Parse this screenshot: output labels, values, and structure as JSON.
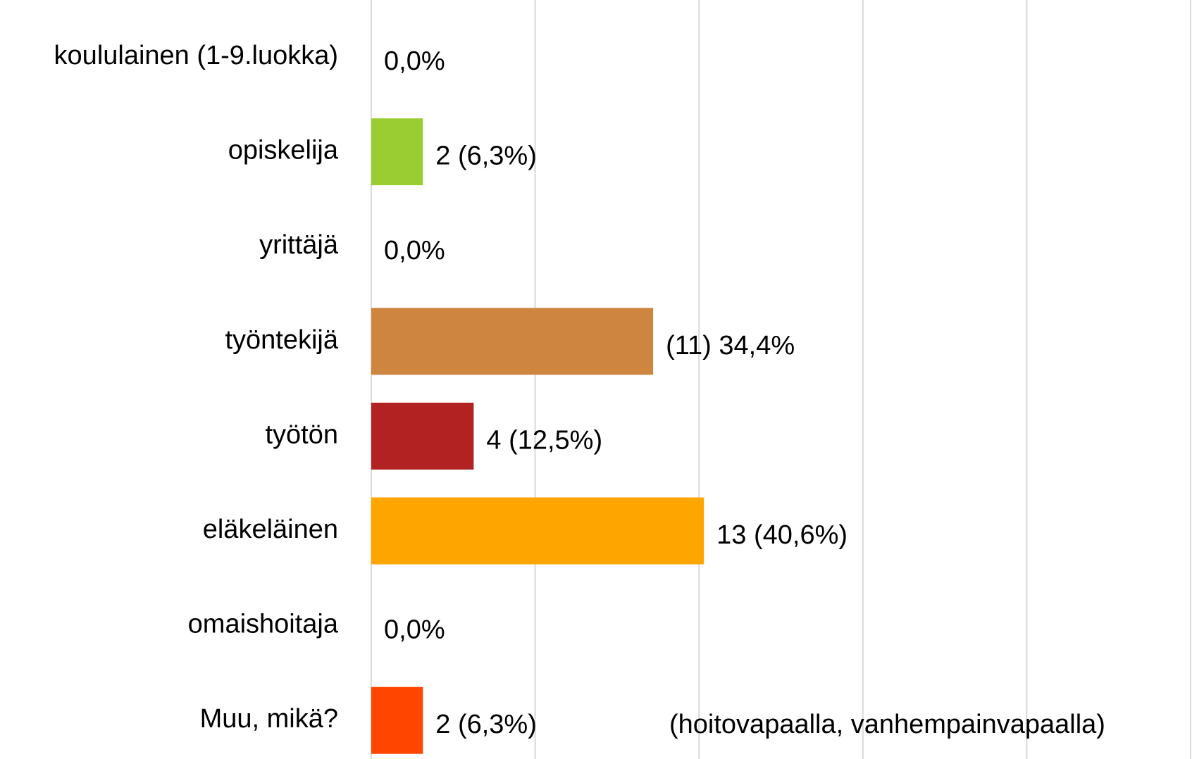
{
  "chart_data": {
    "type": "bar",
    "orientation": "horizontal",
    "categories": [
      "koululainen (1-9.luokka)",
      "opiskelija",
      "yrittäjä",
      "työntekijä",
      "työtön",
      "eläkeläinen",
      "omaishoitaja",
      "Muu, mikä?"
    ],
    "values": [
      0,
      6.3,
      0,
      34.4,
      12.5,
      40.6,
      0,
      6.3
    ],
    "value_labels": [
      "0,0%",
      "2 (6,3%)",
      "0,0%",
      "(11) 34,4%",
      "4 (12,5%)",
      "13 (40,6%)",
      "0,0%",
      "2 (6,3%)"
    ],
    "colors": [
      null,
      "#9acd32",
      null,
      "#cd853f",
      "#b22222",
      "#ffa500",
      null,
      "#ff4500"
    ],
    "xlim": [
      0,
      100
    ],
    "xticks": [
      0,
      20,
      40,
      60,
      80,
      100
    ],
    "grid": true,
    "annotation": "(hoitovapaalla, vanhempainvapaalla)"
  }
}
